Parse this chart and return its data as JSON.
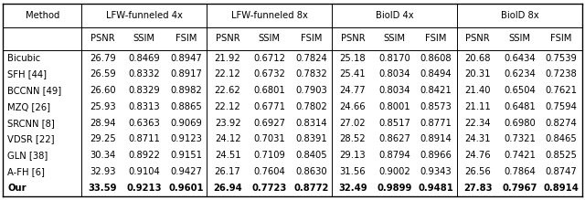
{
  "methods": [
    "Bicubic",
    "SFH [44]",
    "BCCNN [49]",
    "MZQ [26]",
    "SRCNN [8]",
    "VDSR [22]",
    "GLN [38]",
    "A-FH [6]",
    "Our"
  ],
  "data": {
    "LFW-funneled 4x": {
      "PSNR": [
        26.79,
        26.59,
        26.6,
        25.93,
        28.94,
        29.25,
        30.34,
        32.93,
        33.59
      ],
      "SSIM": [
        0.8469,
        0.8332,
        0.8329,
        0.8313,
        0.6363,
        0.8711,
        0.8922,
        0.9104,
        0.9213
      ],
      "FSIM": [
        0.8947,
        0.8917,
        0.8982,
        0.8865,
        0.9069,
        0.9123,
        0.9151,
        0.9427,
        0.9601
      ]
    },
    "LFW-funneled 8x": {
      "PSNR": [
        21.92,
        22.12,
        22.62,
        22.12,
        23.92,
        24.12,
        24.51,
        26.17,
        26.94
      ],
      "SSIM": [
        0.6712,
        0.6732,
        0.6801,
        0.6771,
        0.6927,
        0.7031,
        0.7109,
        0.7604,
        0.7723
      ],
      "FSIM": [
        0.7824,
        0.7832,
        0.7903,
        0.7802,
        0.8314,
        0.8391,
        0.8405,
        0.863,
        0.8772
      ]
    },
    "BioID 4x": {
      "PSNR": [
        25.18,
        25.41,
        24.77,
        24.66,
        27.02,
        28.52,
        29.13,
        31.56,
        32.49
      ],
      "SSIM": [
        0.817,
        0.8034,
        0.8034,
        0.8001,
        0.8517,
        0.8627,
        0.8794,
        0.9002,
        0.9899
      ],
      "FSIM": [
        0.8608,
        0.8494,
        0.8421,
        0.8573,
        0.8771,
        0.8914,
        0.8966,
        0.9343,
        0.9481
      ]
    },
    "BioID 8x": {
      "PSNR": [
        20.68,
        20.31,
        21.4,
        21.11,
        22.34,
        24.31,
        24.76,
        26.56,
        27.83
      ],
      "SSIM": [
        0.6434,
        0.6234,
        0.6504,
        0.6481,
        0.698,
        0.7321,
        0.7421,
        0.7864,
        0.7967
      ],
      "FSIM": [
        0.7539,
        0.7238,
        0.7621,
        0.7594,
        0.8274,
        0.8465,
        0.8525,
        0.8747,
        0.8914
      ]
    }
  },
  "bold_row": "Our",
  "font_size": 7.2,
  "header_font_size": 7.2,
  "figsize": [
    6.4,
    2.19
  ],
  "col_w": [
    1.55,
    0.82,
    0.82,
    0.82,
    0.82,
    0.82,
    0.82,
    0.82,
    0.82,
    0.82,
    0.82,
    0.82,
    0.82
  ],
  "groups": [
    "LFW-funneled 4x",
    "LFW-funneled 8x",
    "BioID 4x",
    "BioID 8x"
  ],
  "metrics": [
    "PSNR",
    "SSIM",
    "FSIM"
  ]
}
